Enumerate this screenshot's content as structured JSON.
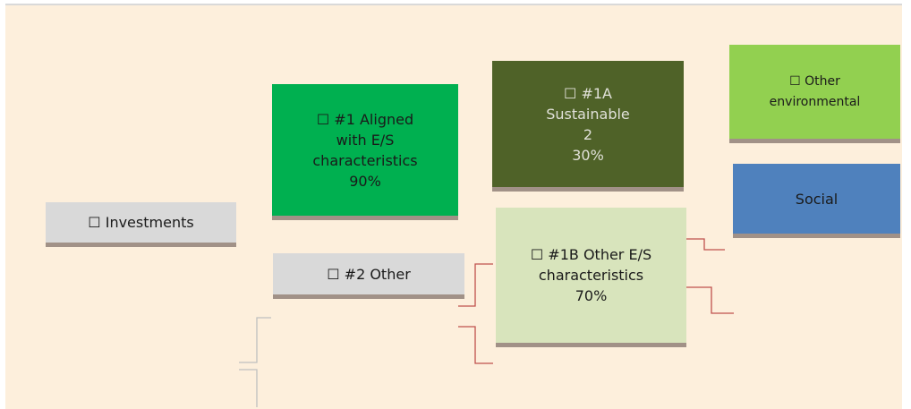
{
  "nodes": [
    {
      "label": [
        "☐ Investments"
      ]
    },
    {
      "label": [
        "☐ #1 Aligned",
        "with E/S",
        "characteristics",
        "90%"
      ]
    },
    {
      "label": [
        "☐ #2 Other"
      ]
    },
    {
      "label": [
        "☐ #1A",
        "Sustainable",
        "2",
        "30%"
      ]
    },
    {
      "label": [
        "☐ #1B Other E/S",
        "characteristics",
        "70%"
      ]
    },
    {
      "label": [
        "☐ Other",
        "environmental"
      ]
    },
    {
      "label": [
        "Social"
      ]
    }
  ]
}
